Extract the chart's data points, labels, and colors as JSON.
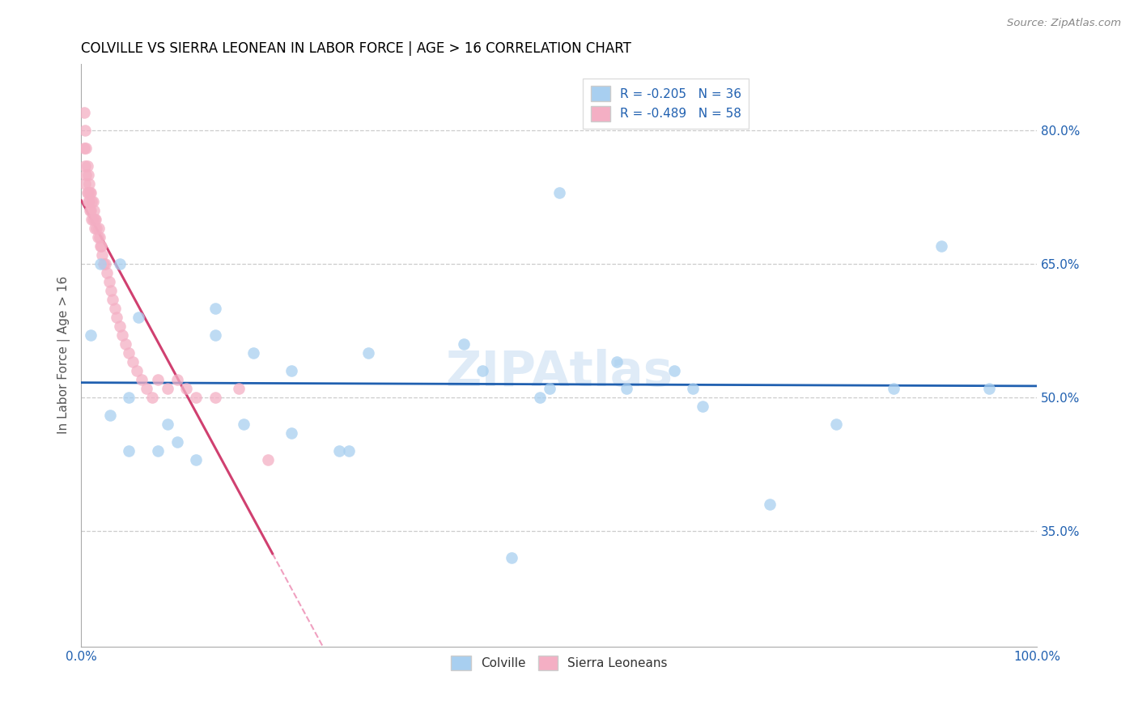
{
  "title": "COLVILLE VS SIERRA LEONEAN IN LABOR FORCE | AGE > 16 CORRELATION CHART",
  "source": "Source: ZipAtlas.com",
  "ylabel": "In Labor Force | Age > 16",
  "xlim": [
    0.0,
    1.0
  ],
  "ylim": [
    0.22,
    0.875
  ],
  "yticks": [
    0.35,
    0.5,
    0.65,
    0.8
  ],
  "ytick_labels": [
    "35.0%",
    "50.0%",
    "65.0%",
    "80.0%"
  ],
  "xtick_labels": [
    "0.0%",
    "",
    "",
    "",
    "",
    "",
    "",
    "",
    "",
    "",
    "100.0%"
  ],
  "legend_labels": [
    "Colville",
    "Sierra Leoneans"
  ],
  "colville_color": "#a8cff0",
  "sierra_color": "#f4afc4",
  "colville_R": -0.205,
  "colville_N": 36,
  "sierra_R": -0.489,
  "sierra_N": 58,
  "colville_line_color": "#2060b0",
  "sierra_line_solid_color": "#d04070",
  "sierra_line_dash_color": "#f0a0c0",
  "watermark": "ZIPAtlas",
  "colville_x": [
    0.02,
    0.04,
    0.01,
    0.06,
    0.09,
    0.14,
    0.14,
    0.17,
    0.18,
    0.22,
    0.22,
    0.27,
    0.28,
    0.4,
    0.42,
    0.48,
    0.49,
    0.5,
    0.56,
    0.57,
    0.62,
    0.64,
    0.65,
    0.72,
    0.79,
    0.85,
    0.9,
    0.95,
    0.03,
    0.05,
    0.05,
    0.08,
    0.1,
    0.12,
    0.45,
    0.3
  ],
  "colville_y": [
    0.65,
    0.65,
    0.57,
    0.59,
    0.47,
    0.57,
    0.6,
    0.47,
    0.55,
    0.53,
    0.46,
    0.44,
    0.44,
    0.56,
    0.53,
    0.5,
    0.51,
    0.73,
    0.54,
    0.51,
    0.53,
    0.51,
    0.49,
    0.38,
    0.47,
    0.51,
    0.67,
    0.51,
    0.48,
    0.5,
    0.44,
    0.44,
    0.45,
    0.43,
    0.32,
    0.55
  ],
  "sierra_x": [
    0.003,
    0.003,
    0.004,
    0.004,
    0.004,
    0.005,
    0.005,
    0.006,
    0.006,
    0.007,
    0.007,
    0.007,
    0.008,
    0.008,
    0.009,
    0.009,
    0.01,
    0.01,
    0.011,
    0.011,
    0.012,
    0.012,
    0.013,
    0.014,
    0.014,
    0.015,
    0.016,
    0.017,
    0.018,
    0.019,
    0.02,
    0.021,
    0.022,
    0.023,
    0.025,
    0.027,
    0.029,
    0.031,
    0.033,
    0.035,
    0.037,
    0.04,
    0.043,
    0.046,
    0.05,
    0.054,
    0.058,
    0.063,
    0.068,
    0.074,
    0.08,
    0.09,
    0.1,
    0.11,
    0.12,
    0.14,
    0.165,
    0.195
  ],
  "sierra_y": [
    0.82,
    0.78,
    0.8,
    0.76,
    0.74,
    0.78,
    0.75,
    0.76,
    0.73,
    0.75,
    0.73,
    0.72,
    0.74,
    0.72,
    0.73,
    0.71,
    0.73,
    0.71,
    0.72,
    0.7,
    0.72,
    0.7,
    0.71,
    0.7,
    0.69,
    0.7,
    0.69,
    0.68,
    0.69,
    0.68,
    0.67,
    0.67,
    0.66,
    0.65,
    0.65,
    0.64,
    0.63,
    0.62,
    0.61,
    0.6,
    0.59,
    0.58,
    0.57,
    0.56,
    0.55,
    0.54,
    0.53,
    0.52,
    0.51,
    0.5,
    0.52,
    0.51,
    0.52,
    0.51,
    0.5,
    0.5,
    0.51,
    0.43
  ]
}
